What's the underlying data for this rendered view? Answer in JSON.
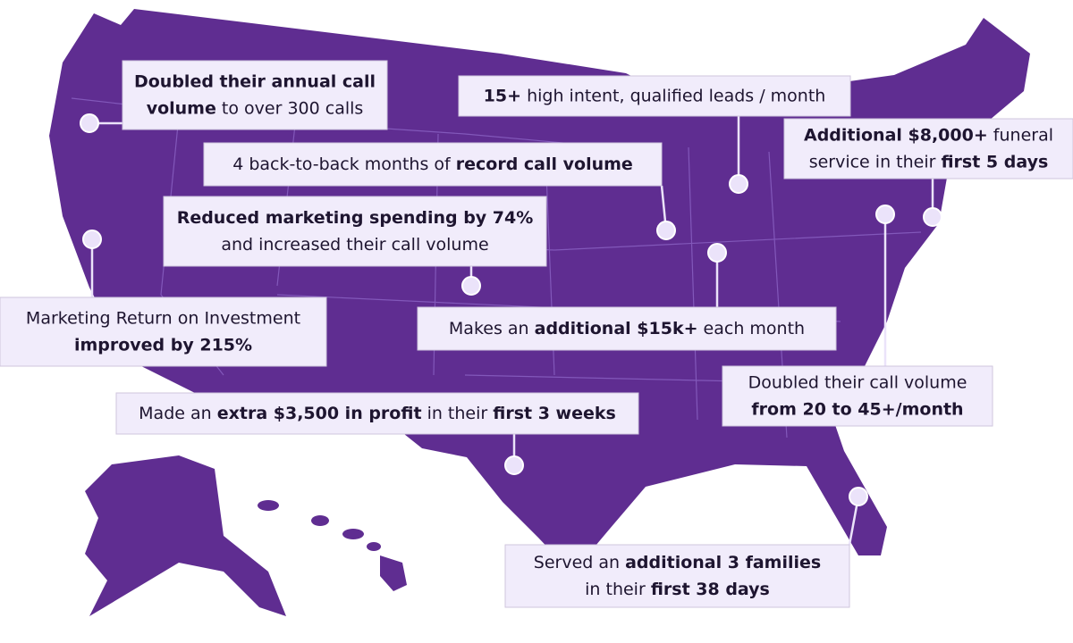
{
  "callouts": [
    {
      "lines": [
        [
          {
            "text": "Doubled their annual call",
            "bold": true
          }
        ],
        [
          {
            "text": "volume",
            "bold": true
          },
          {
            "text": " to over 300 calls",
            "bold": false
          }
        ]
      ]
    },
    {
      "lines": [
        [
          {
            "text": "15+",
            "bold": true
          },
          {
            "text": " high intent, qualified leads / month",
            "bold": false
          }
        ]
      ]
    },
    {
      "lines": [
        [
          {
            "text": "Additional $8,000+",
            "bold": true
          },
          {
            "text": " funeral",
            "bold": false
          }
        ],
        [
          {
            "text": "service in their ",
            "bold": false
          },
          {
            "text": "first 5 days",
            "bold": true
          }
        ]
      ]
    },
    {
      "lines": [
        [
          {
            "text": "4 back-to-back months of ",
            "bold": false
          },
          {
            "text": "record call volume",
            "bold": true
          }
        ]
      ]
    },
    {
      "lines": [
        [
          {
            "text": "Reduced marketing spending by 74%",
            "bold": true
          }
        ],
        [
          {
            "text": "and increased their call volume",
            "bold": false
          }
        ]
      ]
    },
    {
      "lines": [
        [
          {
            "text": "Marketing Return on Investment",
            "bold": false
          }
        ],
        [
          {
            "text": "improved by 215%",
            "bold": true
          }
        ]
      ]
    },
    {
      "lines": [
        [
          {
            "text": "Makes an ",
            "bold": false
          },
          {
            "text": "additional $15k+",
            "bold": true
          },
          {
            "text": " each month",
            "bold": false
          }
        ]
      ]
    },
    {
      "lines": [
        [
          {
            "text": "Doubled their call volume",
            "bold": false
          }
        ],
        [
          {
            "text": "from 20 to 45+/month",
            "bold": true
          }
        ]
      ]
    },
    {
      "lines": [
        [
          {
            "text": "Made an ",
            "bold": false
          },
          {
            "text": "extra $3,500 in profit",
            "bold": true
          },
          {
            "text": " in their ",
            "bold": false
          },
          {
            "text": "first 3 weeks",
            "bold": true
          }
        ]
      ]
    },
    {
      "lines": [
        [
          {
            "text": "Served an ",
            "bold": false
          },
          {
            "text": "additional 3 families",
            "bold": true
          }
        ],
        [
          {
            "text": "in their ",
            "bold": false
          },
          {
            "text": "first 38 days",
            "bold": true
          }
        ]
      ]
    }
  ]
}
